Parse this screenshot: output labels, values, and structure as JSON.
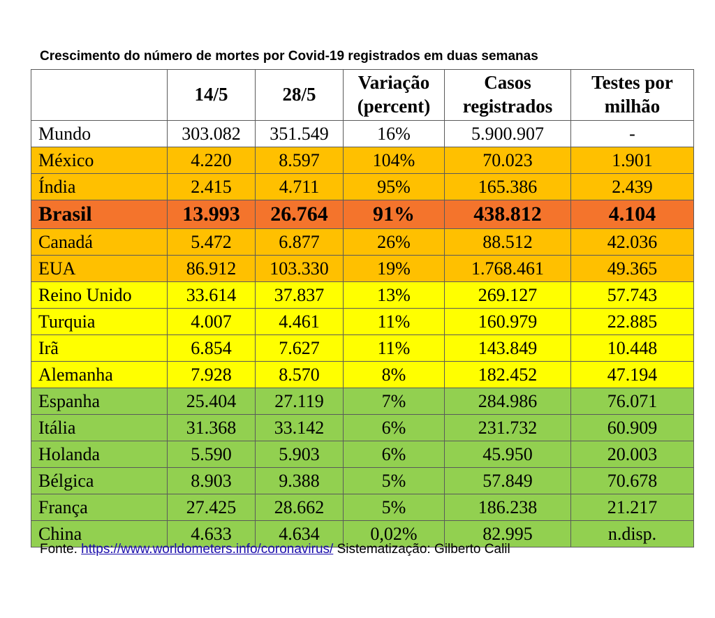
{
  "title": "Crescimento do número de mortes por Covid-19 registrados em duas semanas",
  "headers": [
    "",
    "14/5",
    "28/5",
    "Variação (percent)",
    "Casos registrados",
    "Testes por milhão"
  ],
  "colors": {
    "gray": "#ffffff",
    "orange": "#ffc000",
    "darkorange": "#f4742c",
    "yellow": "#ffff00",
    "green": "#92d050"
  },
  "rows": [
    {
      "country": "Mundo",
      "d14": "303.082",
      "d28": "351.549",
      "var": "16%",
      "casos": "5.900.907",
      "testes": "-",
      "tier": "white"
    },
    {
      "country": "México",
      "d14": "4.220",
      "d28": "8.597",
      "var": "104%",
      "casos": "70.023",
      "testes": "1.901",
      "tier": "orange"
    },
    {
      "country": "Índia",
      "d14": "2.415",
      "d28": "4.711",
      "var": "95%",
      "casos": "165.386",
      "testes": "2.439",
      "tier": "orange"
    },
    {
      "country": "Brasil",
      "d14": "13.993",
      "d28": "26.764",
      "var": "91%",
      "casos": "438.812",
      "testes": "4.104",
      "tier": "darkorange"
    },
    {
      "country": "Canadá",
      "d14": "5.472",
      "d28": "6.877",
      "var": "26%",
      "casos": "88.512",
      "testes": "42.036",
      "tier": "orange"
    },
    {
      "country": "EUA",
      "d14": "86.912",
      "d28": "103.330",
      "var": "19%",
      "casos": "1.768.461",
      "testes": "49.365",
      "tier": "orange"
    },
    {
      "country": "Reino Unido",
      "d14": "33.614",
      "d28": "37.837",
      "var": "13%",
      "casos": "269.127",
      "testes": "57.743",
      "tier": "yellow"
    },
    {
      "country": "Turquia",
      "d14": "4.007",
      "d28": "4.461",
      "var": "11%",
      "casos": "160.979",
      "testes": "22.885",
      "tier": "yellow"
    },
    {
      "country": "Irã",
      "d14": "6.854",
      "d28": "7.627",
      "var": "11%",
      "casos": "143.849",
      "testes": "10.448",
      "tier": "yellow"
    },
    {
      "country": "Alemanha",
      "d14": "7.928",
      "d28": "8.570",
      "var": "8%",
      "casos": "182.452",
      "testes": "47.194",
      "tier": "yellow"
    },
    {
      "country": "Espanha",
      "d14": "25.404",
      "d28": "27.119",
      "var": "7%",
      "casos": "284.986",
      "testes": "76.071",
      "tier": "green"
    },
    {
      "country": "Itália",
      "d14": "31.368",
      "d28": "33.142",
      "var": "6%",
      "casos": "231.732",
      "testes": "60.909",
      "tier": "green"
    },
    {
      "country": "Holanda",
      "d14": "5.590",
      "d28": "5.903",
      "var": "6%",
      "casos": "45.950",
      "testes": "20.003",
      "tier": "green"
    },
    {
      "country": "Bélgica",
      "d14": "8.903",
      "d28": "9.388",
      "var": "5%",
      "casos": "57.849",
      "testes": "70.678",
      "tier": "green"
    },
    {
      "country": "França",
      "d14": "27.425",
      "d28": "28.662",
      "var": "5%",
      "casos": "186.238",
      "testes": "21.217",
      "tier": "green"
    },
    {
      "country": "China",
      "d14": "4.633",
      "d28": "4.634",
      "var": "0,02%",
      "casos": "82.995",
      "testes": "n.disp.",
      "tier": "green"
    }
  ],
  "footer": {
    "prefix": "Fonte.",
    "link": "https://www.worldometers.info/coronavirus/",
    "suffix": "Sistematização: Gilberto Calil"
  }
}
